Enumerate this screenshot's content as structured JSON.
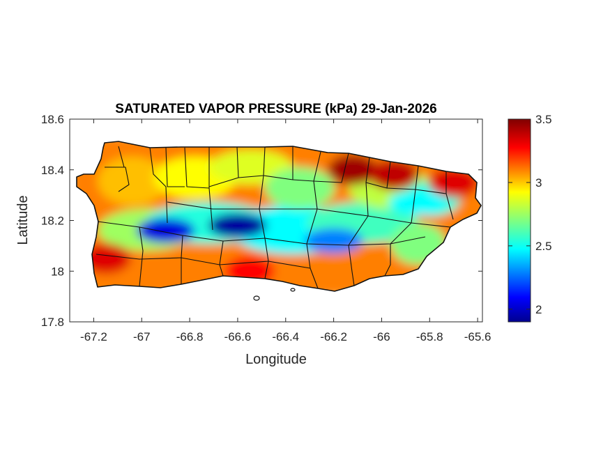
{
  "title": "SATURATED VAPOR PRESSURE (kPa) 29-Jan-2026",
  "xlabel": "Longitude",
  "ylabel": "Latitude",
  "x_ticks": [
    "-67.2",
    "-67",
    "-66.8",
    "-66.6",
    "-66.4",
    "-66.2",
    "-66",
    "-65.8",
    "-65.6"
  ],
  "y_ticks": [
    "18.6",
    "18.4",
    "18.2",
    "18",
    "17.8"
  ],
  "colorbar": {
    "ticks": [
      "3.5",
      "3",
      "2.5",
      "2"
    ],
    "colormap": "jet",
    "range": [
      1.9,
      3.5
    ]
  },
  "map": {
    "type": "filled-contour",
    "region": "Puerto Rico",
    "xlim": [
      -67.3,
      -65.58
    ],
    "ylim": [
      17.8,
      18.6
    ],
    "overlay": "municipality boundaries",
    "field_hotspots": [
      {
        "lon": -66.12,
        "lat": 18.4,
        "value": 3.45
      },
      {
        "lon": -65.95,
        "lat": 18.38,
        "value": 3.4
      },
      {
        "lon": -65.7,
        "lat": 18.35,
        "value": 3.35
      },
      {
        "lon": -67.15,
        "lat": 18.05,
        "value": 3.35
      },
      {
        "lon": -66.55,
        "lat": 18.0,
        "value": 3.3
      },
      {
        "lon": -66.6,
        "lat": 18.18,
        "value": 1.95
      },
      {
        "lon": -66.9,
        "lat": 18.16,
        "value": 2.05
      },
      {
        "lon": -66.2,
        "lat": 18.12,
        "value": 2.3
      },
      {
        "lon": -65.85,
        "lat": 18.27,
        "value": 2.5
      }
    ]
  }
}
